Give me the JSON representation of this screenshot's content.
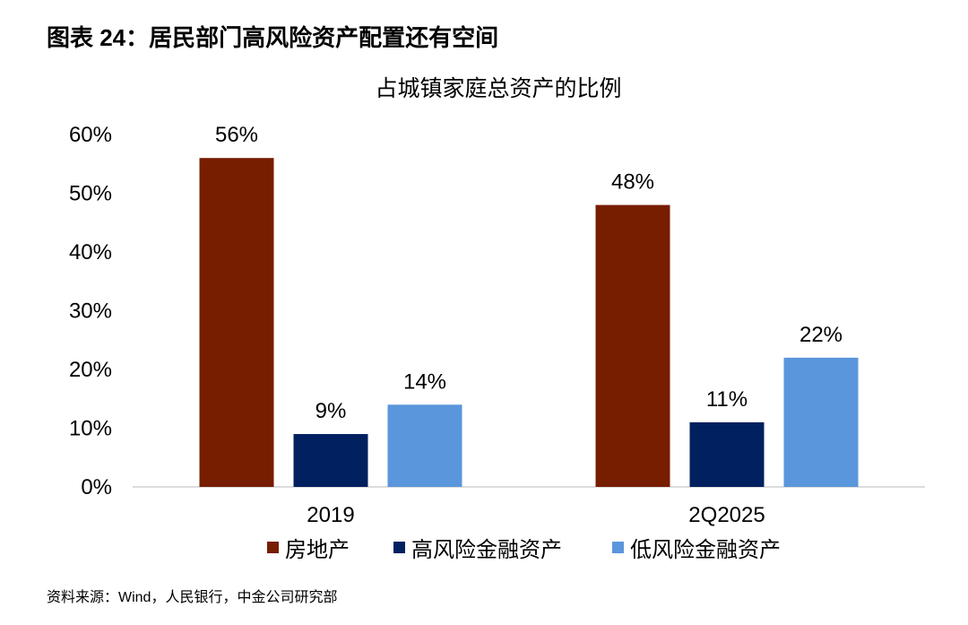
{
  "figure_title": "图表 24：居民部门高风险资产配置还有空间",
  "source": "资料来源：Wind，人民银行，中金公司研究部",
  "chart_data": {
    "type": "bar",
    "title": "占城镇家庭总资产的比例",
    "categories": [
      "2019",
      "2Q2025"
    ],
    "series": [
      {
        "name": "房地产",
        "color": "#771D00",
        "values": [
          0.56,
          0.48
        ],
        "labels": [
          "56%",
          "48%"
        ]
      },
      {
        "name": "高风险金融资产",
        "color": "#002060",
        "values": [
          0.09,
          0.11
        ],
        "labels": [
          "9%",
          "11%"
        ]
      },
      {
        "name": "低风险金融资产",
        "color": "#5A96DC",
        "values": [
          0.14,
          0.22
        ],
        "labels": [
          "14%",
          "22%"
        ]
      }
    ],
    "ylim": [
      0,
      0.6
    ],
    "yticks": [
      0,
      0.1,
      0.2,
      0.3,
      0.4,
      0.5,
      0.6
    ],
    "ytick_labels": [
      "0%",
      "10%",
      "20%",
      "30%",
      "40%",
      "50%",
      "60%"
    ],
    "xlabel": "",
    "ylabel": "",
    "legend_position": "bottom",
    "grid": false
  }
}
